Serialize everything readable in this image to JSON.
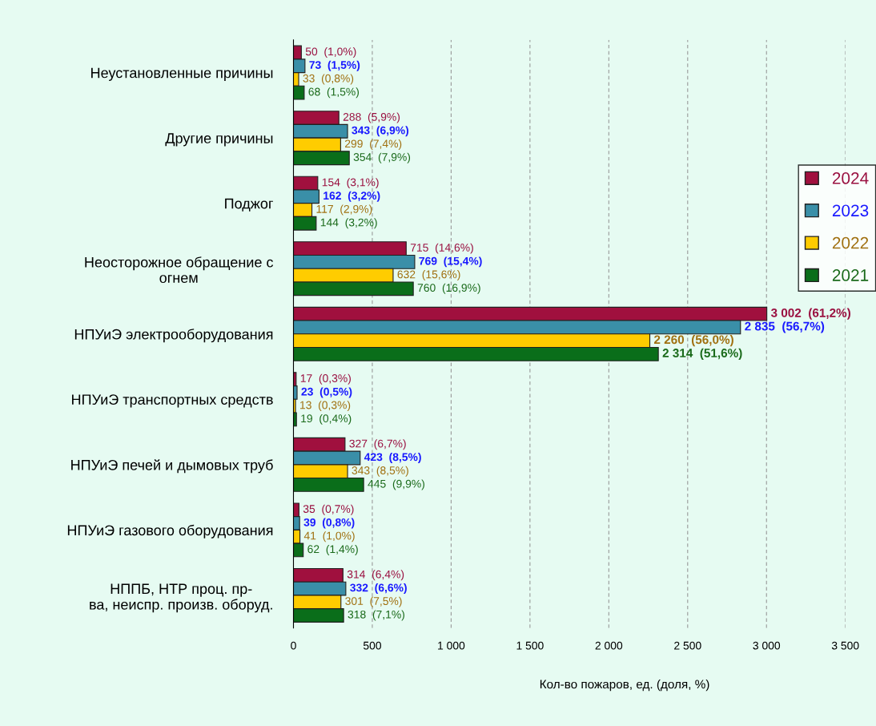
{
  "chart_data": {
    "type": "bar",
    "orientation": "horizontal",
    "xlabel": "Кол-во пожаров, ед. (доля, %)",
    "categories": [
      "Неустановленные причины",
      "Другие причины",
      "Поджог",
      "Неосторожное обращение с\nогнем",
      "НПУиЭ электрооборудования",
      "НПУиЭ транспортных средств",
      "НПУиЭ печей и дымовых труб",
      "НПУиЭ газового оборудования",
      "НППБ, НТР проц. пр-\nва, неиспр. произв. оборуд."
    ],
    "series": [
      {
        "name": "2024",
        "color": "#a0103e",
        "values": [
          50,
          288,
          154,
          715,
          3002,
          17,
          327,
          35,
          314
        ],
        "value_labels": [
          "50  (1,0%)",
          "288  (5,9%)",
          "154  (3,1%)",
          "715  (14,6%)",
          "3 002  (61,2%)",
          "17  (0,3%)",
          "327  (6,7%)",
          "35  (0,7%)",
          "314  (6,4%)"
        ]
      },
      {
        "name": "2023",
        "color": "#3a8fa8",
        "values": [
          73,
          343,
          162,
          769,
          2835,
          23,
          423,
          39,
          332
        ],
        "value_labels": [
          "73  (1,5%)",
          "343  (6,9%)",
          "162  (3,2%)",
          "769  (15,4%)",
          "2 835  (56,7%)",
          "23  (0,5%)",
          "423  (8,5%)",
          "39  (0,8%)",
          "332  (6,6%)"
        ]
      },
      {
        "name": "2022",
        "color": "#ffcc00",
        "values": [
          33,
          299,
          117,
          632,
          2260,
          13,
          343,
          41,
          301
        ],
        "value_labels": [
          "33  (0,8%)",
          "299  (7,4%)",
          "117  (2,9%)",
          "632  (15,6%)",
          "2 260  (56,0%)",
          "13  (0,3%)",
          "343  (8,5%)",
          "41  (1,0%)",
          "301  (7,5%)"
        ]
      },
      {
        "name": "2021",
        "color": "#0a6e1a",
        "values": [
          68,
          354,
          144,
          760,
          2314,
          19,
          445,
          62,
          318
        ],
        "value_labels": [
          "68  (1,5%)",
          "354  (7,9%)",
          "144  (3,2%)",
          "760  (16,9%)",
          "2 314  (51,6%)",
          "19  (0,4%)",
          "445  (9,9%)",
          "62  (1,4%)",
          "318  (7,1%)"
        ]
      }
    ],
    "xlim": [
      0,
      3500
    ],
    "xticks": [
      0,
      500,
      {
        "value": 1000,
        "label": "1 000"
      },
      {
        "value": 1500,
        "label": "1 500"
      },
      {
        "value": 2000,
        "label": "2 000"
      },
      {
        "value": 2500,
        "label": "2 500"
      },
      {
        "value": 3000,
        "label": "3 000"
      },
      {
        "value": 3500,
        "label": "3 500"
      }
    ],
    "grid": "x",
    "legend": "right"
  }
}
